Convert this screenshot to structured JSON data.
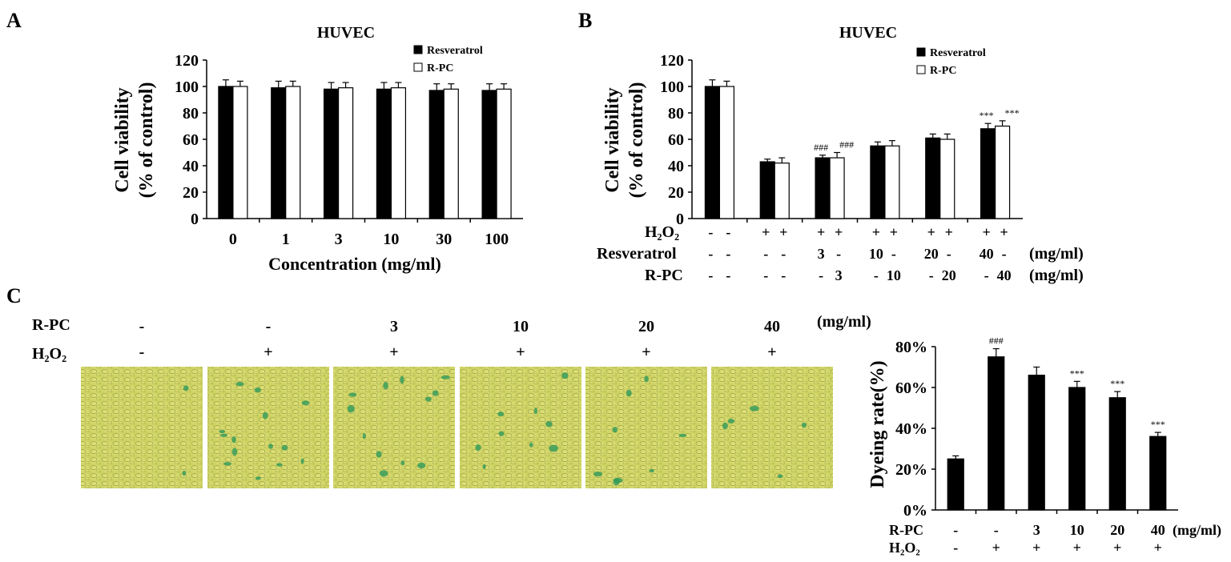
{
  "panel_letters": {
    "a": "A",
    "b": "B",
    "c": "C"
  },
  "chart_data": [
    {
      "panel": "A",
      "type": "bar",
      "title": "HUVEC",
      "ylabel_line1": "Cell viability",
      "ylabel_line2": "(% of control)",
      "xlabel": "Concentration (mg/ml)",
      "categories": [
        "0",
        "1",
        "3",
        "10",
        "30",
        "100"
      ],
      "ylim": [
        0,
        120
      ],
      "yticks": [
        "0",
        "20",
        "40",
        "60",
        "80",
        "100",
        "120"
      ],
      "legend_position": "top-right",
      "series": [
        {
          "name": "Resveratrol",
          "color": "#000000",
          "values": [
            100,
            99,
            98,
            98,
            97,
            97
          ],
          "errors": [
            5,
            5,
            5,
            5,
            5,
            5
          ]
        },
        {
          "name": "R-PC",
          "color": "#ffffff",
          "values": [
            100,
            100,
            99,
            99,
            98,
            98
          ],
          "errors": [
            4,
            4,
            4,
            4,
            4,
            4
          ]
        }
      ]
    },
    {
      "panel": "B",
      "type": "bar",
      "title": "HUVEC",
      "ylabel_line1": "Cell viability",
      "ylabel_line2": "(% of control)",
      "ylim": [
        0,
        120
      ],
      "yticks": [
        "0",
        "20",
        "40",
        "60",
        "80",
        "100",
        "120"
      ],
      "legend_position": "top-right",
      "series": [
        {
          "name": "Resveratrol",
          "color": "#000000",
          "values": [
            100,
            43,
            46,
            55,
            61,
            68
          ],
          "errors": [
            5,
            2,
            2,
            3,
            3,
            4
          ]
        },
        {
          "name": "R-PC",
          "color": "#ffffff",
          "values": [
            100,
            42,
            46,
            55,
            60,
            70
          ],
          "errors": [
            4,
            4,
            4,
            4,
            4,
            4
          ]
        }
      ],
      "annotations": [
        {
          "group": 2,
          "series": 0,
          "text": "###"
        },
        {
          "group": 2,
          "series": 1,
          "text": "###"
        },
        {
          "group": 5,
          "series": 0,
          "text": "***"
        },
        {
          "group": 5,
          "series": 1,
          "text": "***"
        }
      ],
      "table_rows": [
        {
          "label": "H₂O₂",
          "unit": "",
          "cells": [
            "-",
            "-",
            "+",
            "+",
            "+",
            "+",
            "+",
            "+",
            "+",
            "+",
            "+",
            "+"
          ]
        },
        {
          "label": "Resveratrol",
          "unit": "(mg/ml)",
          "cells": [
            "-",
            "-",
            "-",
            "-",
            "3",
            "-",
            "10",
            "-",
            "20",
            "-",
            "40",
            "-"
          ]
        },
        {
          "label": "R-PC",
          "unit": "(mg/ml)",
          "cells": [
            "-",
            "-",
            "-",
            "-",
            "-",
            "3",
            "-",
            "10",
            "-",
            "20",
            "-",
            "40"
          ]
        }
      ]
    },
    {
      "panel": "C",
      "type": "bar",
      "ylabel": "Dyeing rate(%)",
      "ylim": [
        0,
        80
      ],
      "yticks": [
        "0%",
        "20%",
        "40%",
        "60%",
        "80%"
      ],
      "series": [
        {
          "color": "#000000",
          "values": [
            25,
            75,
            66,
            60,
            55,
            36
          ],
          "errors": [
            1.5,
            4,
            4,
            3,
            3,
            2
          ]
        }
      ],
      "annotations": [
        {
          "group": 1,
          "text": "###"
        },
        {
          "group": 3,
          "text": "***"
        },
        {
          "group": 4,
          "text": "***"
        },
        {
          "group": 5,
          "text": "***"
        }
      ],
      "table_rows": [
        {
          "label": "R-PC",
          "unit": "(mg/ml)",
          "cells": [
            "-",
            "-",
            "3",
            "10",
            "20",
            "40"
          ]
        },
        {
          "label": "H₂O₂",
          "unit": "",
          "cells": [
            "-",
            "+",
            "+",
            "+",
            "+",
            "+"
          ]
        }
      ]
    }
  ],
  "micrographs": {
    "unit": "(mg/ml)",
    "row_labels": {
      "rpc": "R-PC",
      "h2o2": "H₂O₂"
    },
    "rpc": [
      "-",
      "-",
      "3",
      "10",
      "20",
      "40"
    ],
    "h2o2": [
      "-",
      "+",
      "+",
      "+",
      "+",
      "+"
    ]
  }
}
